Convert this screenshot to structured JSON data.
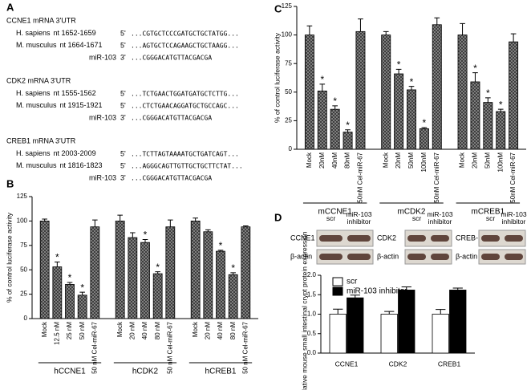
{
  "panel_a": {
    "panel": "A",
    "blocks": [
      {
        "title": "CCNE1 mRNA 3'UTR",
        "rows": [
          {
            "species": "H. sapiens",
            "position": "nt 1652-1659",
            "end": "5'",
            "sequence": "...CGTGCTCCCGATGCTGCTATGG..."
          },
          {
            "species": "M. musculus",
            "position": "nt 1664-1671",
            "end": "5'",
            "sequence": "...AGTGCTCCAGAAGCTGCTAAGG..."
          },
          {
            "species": "miR-103",
            "end": "3'",
            "sequence": "...CGGGACATGTTACGACGA"
          }
        ]
      },
      {
        "title": "CDK2 mRNA 3'UTR",
        "rows": [
          {
            "species": "H. sapiens",
            "position": "nt 1555-1562",
            "end": "5'",
            "sequence": "...TCTGAACTGGATGATGCTCTTG..."
          },
          {
            "species": "M. musculus",
            "position": "nt 1915-1921",
            "end": "5'",
            "sequence": "...CTCTGAACAGGATGCTGCCAGC..."
          },
          {
            "species": "miR-103",
            "end": "3'",
            "sequence": "...CGGGACATGTTACGACGA"
          }
        ]
      },
      {
        "title": "CREB1 mRNA 3'UTR",
        "rows": [
          {
            "species": "H. sapiens",
            "position": "nt 2003-2009",
            "end": "5'",
            "sequence": "...TCTTAGTAAAATGCTGATCAGT..."
          },
          {
            "species": "M. musculus",
            "position": "nt 1816-1823",
            "end": "5'",
            "sequence": "...AGGGCAGTTGTTGCTGCTTCTAT..."
          },
          {
            "species": "miR-103",
            "end": "3'",
            "sequence": "...CGGGACATGTTACGACGA"
          }
        ]
      }
    ]
  },
  "panel_d_blots": {
    "panel": "D",
    "lanes": [
      "scr",
      "miR-103 inhibitor"
    ],
    "blots": [
      {
        "protein": "CCNE1",
        "control": "β-actin"
      },
      {
        "protein": "CDK2",
        "control": "β-actin"
      },
      {
        "protein": "CREB-1",
        "control": "β-actin"
      }
    ]
  },
  "chart_data": [
    {
      "type": "bar",
      "panel": "B",
      "ylabel": "% of control luciferase activity",
      "color": "#8c8c8c",
      "ylim": [
        0,
        125
      ],
      "yticks": [
        0,
        25,
        50,
        75,
        100,
        125
      ],
      "groups": [
        {
          "name": "hCCNE1",
          "categories": [
            "Mock",
            "12.5 nM",
            "25 nM",
            "50 nM",
            "50 nM Cel-miR-67"
          ],
          "values": [
            100,
            53,
            35,
            24,
            94
          ],
          "errors": [
            2,
            5,
            2,
            3,
            7
          ],
          "markers": [
            null,
            "*",
            "*",
            "*",
            null
          ]
        },
        {
          "name": "hCDK2",
          "categories": [
            "Mock",
            "20 nM",
            "40 nM",
            "80 nM",
            "50 nM Cel-miR-67"
          ],
          "values": [
            100,
            83,
            78,
            46,
            94
          ],
          "errors": [
            6,
            5,
            3,
            2,
            7
          ],
          "markers": [
            null,
            null,
            "*",
            "*",
            null
          ]
        },
        {
          "name": "hCREB1",
          "categories": [
            "Mock",
            "20 nM",
            "40 nM",
            "80 nM",
            "50 nM Cel-miR-67"
          ],
          "values": [
            100,
            89,
            69,
            45,
            94
          ],
          "errors": [
            3,
            2,
            1,
            2,
            1
          ],
          "markers": [
            null,
            null,
            "*",
            "*",
            null
          ]
        }
      ]
    },
    {
      "type": "bar",
      "panel": "C",
      "ylabel": "% of control luciferase activity",
      "color": "#8c8c8c",
      "ylim": [
        0,
        125
      ],
      "yticks": [
        0,
        25,
        50,
        75,
        100,
        125
      ],
      "groups": [
        {
          "name": "mCCNE1",
          "categories": [
            "Mock",
            "20nM",
            "40nM",
            "80nM",
            "50nM Cel-miR-67"
          ],
          "values": [
            100,
            51,
            35,
            15,
            103
          ],
          "errors": [
            8,
            6,
            3,
            2,
            11
          ],
          "markers": [
            null,
            "*",
            "*",
            "*",
            null
          ]
        },
        {
          "name": "mCDK2",
          "categories": [
            "Mock",
            "20nM",
            "50nM",
            "100nM",
            "50nM Cel-miR-67"
          ],
          "values": [
            100,
            66,
            52,
            18,
            109
          ],
          "errors": [
            3,
            4,
            3,
            1,
            6
          ],
          "markers": [
            null,
            "*",
            "*",
            "*",
            null
          ]
        },
        {
          "name": "mCREB1",
          "categories": [
            "Mock",
            "20nM",
            "50nM",
            "100nM",
            "50nM Cel-miR-67"
          ],
          "values": [
            100,
            59,
            41,
            33,
            94
          ],
          "errors": [
            10,
            8,
            4,
            2,
            7
          ],
          "markers": [
            null,
            "*",
            "*",
            "*",
            null
          ]
        }
      ]
    },
    {
      "type": "bar",
      "ylabel": "relative mouse small intestinal crypt protein expression",
      "ylim": [
        0,
        2
      ],
      "yticks": [
        {
          "value": 0,
          "label": "0.0"
        },
        {
          "value": 0.5,
          "label": "0.5"
        },
        {
          "value": 1,
          "label": "1.0"
        },
        {
          "value": 1.5,
          "label": "1.5"
        },
        {
          "value": 2,
          "label": "2.0"
        }
      ],
      "categories": [
        "CCNE1",
        "CDK2",
        "CREB1"
      ],
      "series": [
        {
          "name": "scr",
          "color": "#ffffff",
          "values": [
            1.0,
            1.0,
            1.0
          ],
          "errors": [
            0.13,
            0.07,
            0.12
          ]
        },
        {
          "name": "miR-103 inhibitor",
          "color": "#000000",
          "values": [
            1.42,
            1.62,
            1.62
          ],
          "errors": [
            0.07,
            0.08,
            0.05
          ]
        }
      ]
    }
  ]
}
